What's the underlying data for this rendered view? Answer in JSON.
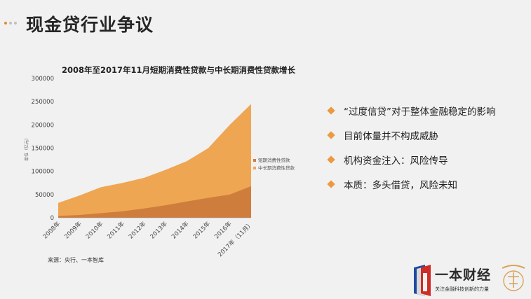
{
  "slide": {
    "title": "现金贷行业争议",
    "dot_colors": [
      "#e58b2a",
      "#c0c0c0",
      "#c0c0c0"
    ]
  },
  "chart_data": {
    "type": "area",
    "title": "2008年至2017年11月短期消费性贷款与中长期消费性贷款增长",
    "ylabel": "单位（亿元）",
    "xlabel": "",
    "categories": [
      "2008年",
      "2009年",
      "2010年",
      "2011年",
      "2012年",
      "2013年",
      "2014年",
      "2015年",
      "2016年",
      "2017年（11月）"
    ],
    "ylim": [
      0,
      300000
    ],
    "yticks": [
      0,
      50000,
      100000,
      150000,
      200000,
      250000,
      300000
    ],
    "ytick_labels": [
      "0",
      "50000",
      "100000",
      "150000",
      "200000",
      "250000",
      "300000"
    ],
    "stacked": false,
    "series": [
      {
        "name": "中长期消费性贷款",
        "color": "#eea653",
        "values": [
          32000,
          48000,
          66000,
          75000,
          86000,
          103000,
          122000,
          150000,
          200000,
          245000
        ]
      },
      {
        "name": "短期消费性贷款",
        "color": "#cf7d3c",
        "values": [
          4000,
          6000,
          10000,
          14000,
          20000,
          27000,
          35000,
          43000,
          50000,
          68000
        ]
      }
    ],
    "legend_position": "right"
  },
  "source": "来源：央行、一本智库",
  "bullets": [
    "“过度信贷”对于整体金融稳定的影响",
    "目前体量并不构成威胁",
    "机构资金注入：风险传导",
    "本质：多头借贷，风险未知"
  ],
  "accent_color": "#ec9a3f",
  "logo": {
    "name": "一本财经",
    "slogan": "关注金融科技创新的力量"
  }
}
